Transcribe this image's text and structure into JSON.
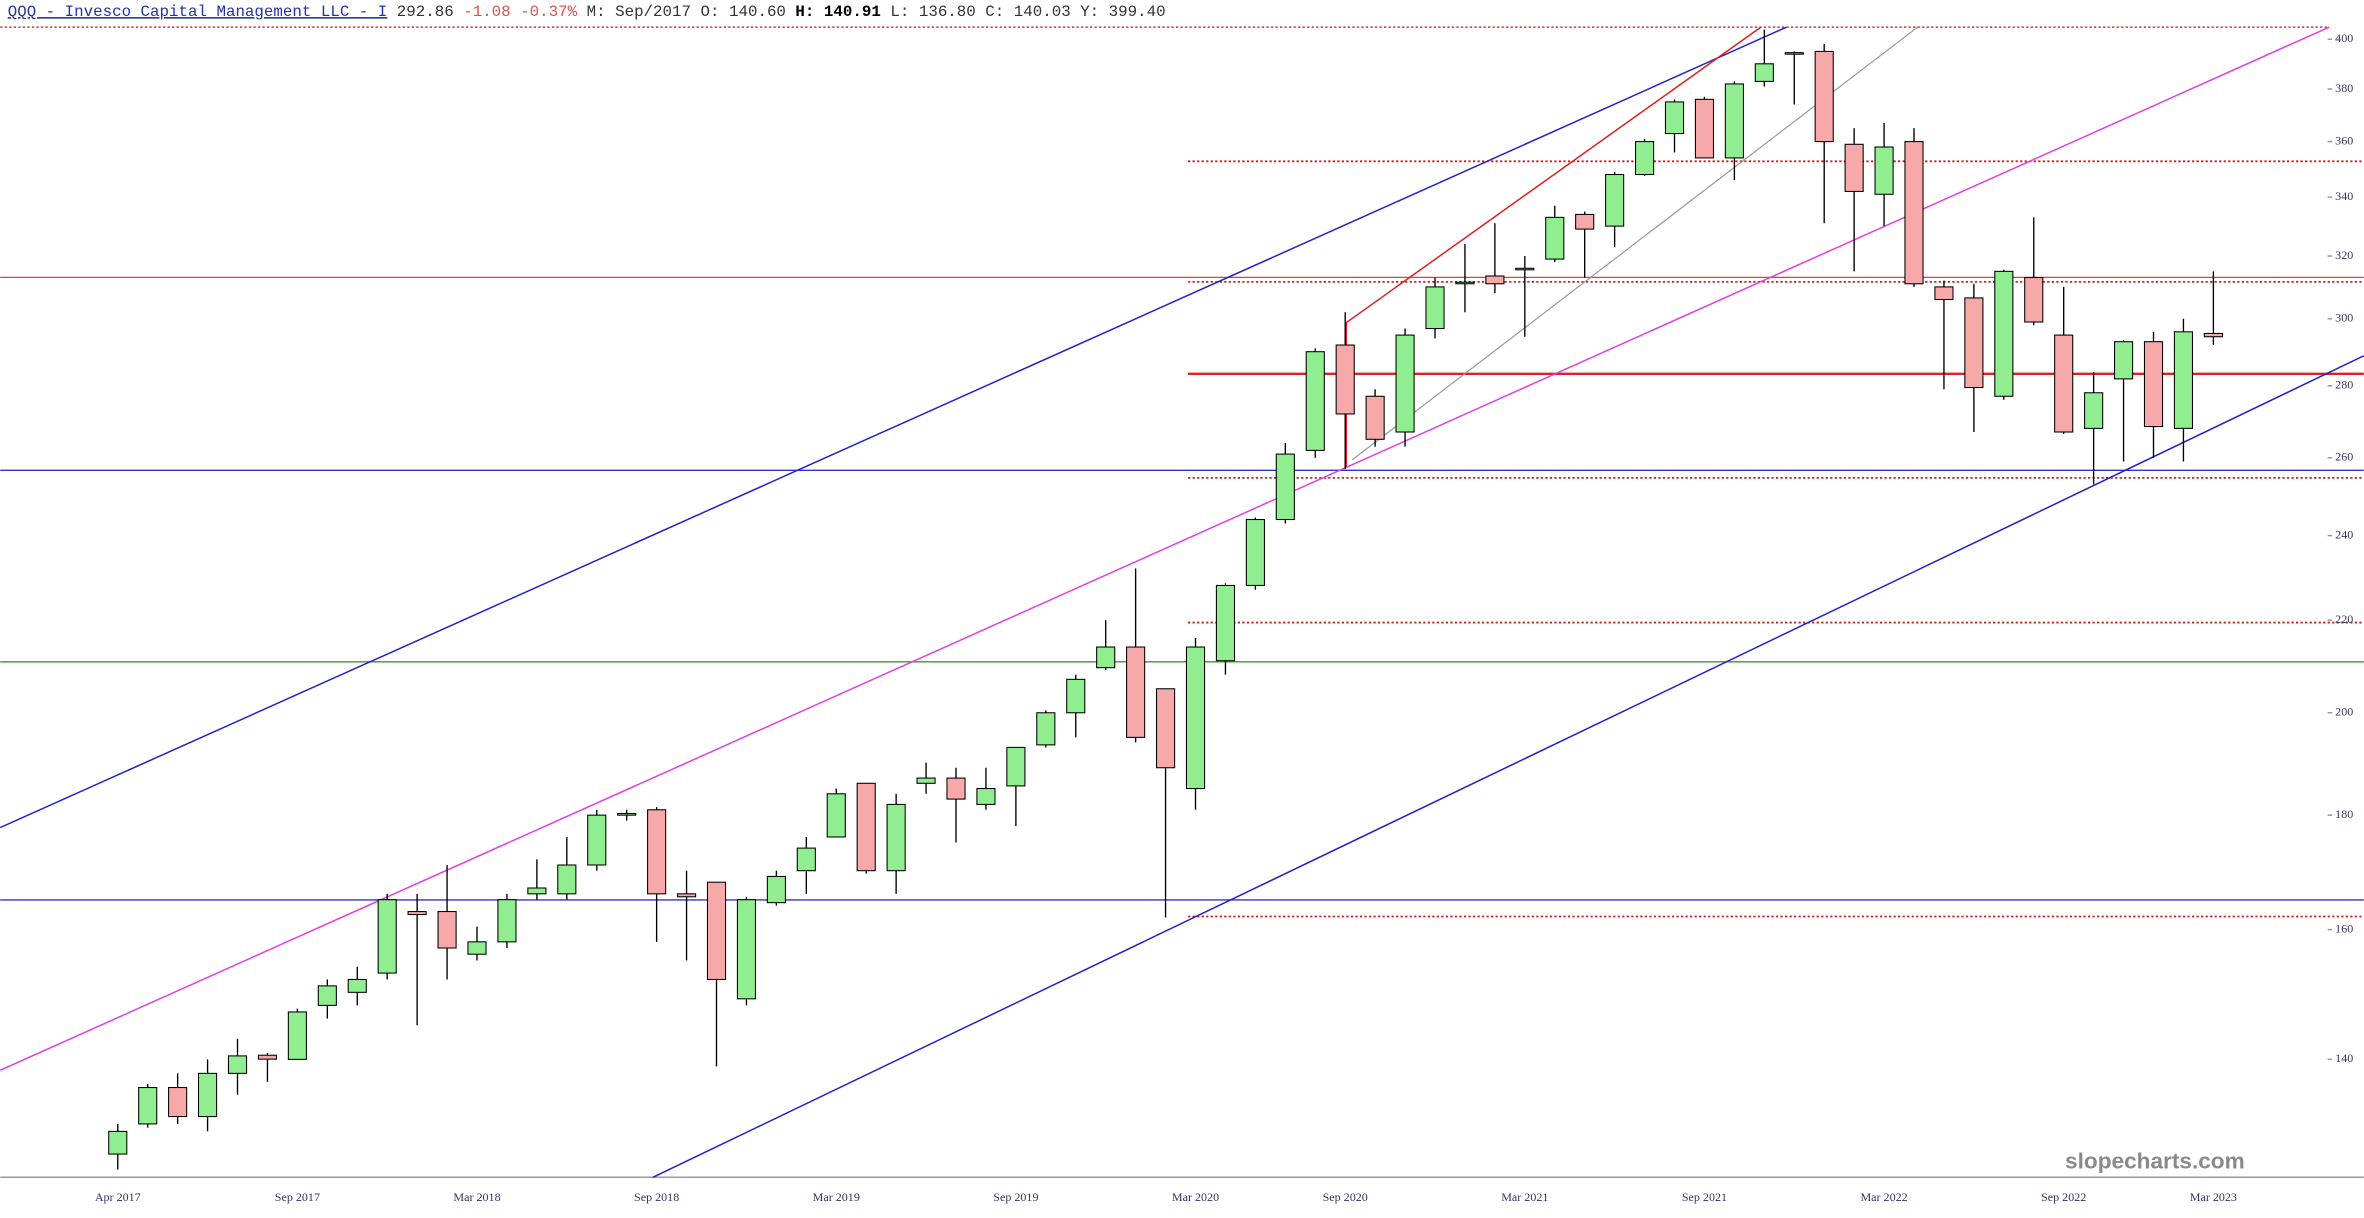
{
  "header": {
    "symbol": "QQQ - Invesco Capital Management LLC - I",
    "last": "292.86",
    "change": "-1.08",
    "change_pct": "-0.37%",
    "period_label": "M:",
    "period": "Sep/2017",
    "open_label": "O:",
    "open": "140.60",
    "high_label": "H:",
    "high": "140.91",
    "low_label": "L:",
    "low": "136.80",
    "close_label": "C:",
    "close": "140.03",
    "y_label": "Y:",
    "y": "399.40"
  },
  "watermark": "slopecharts.com",
  "chart_data": {
    "type": "candlestick",
    "log_scale": true,
    "up_color": "#90ee90",
    "down_color": "#f7a8a8",
    "categories": [
      "Apr 2017",
      null,
      null,
      null,
      null,
      null,
      "Sep 2017",
      null,
      null,
      null,
      null,
      null,
      "Mar 2018",
      null,
      null,
      null,
      null,
      null,
      "Sep 2018",
      null,
      null,
      null,
      null,
      null,
      "Mar 2019",
      null,
      null,
      null,
      null,
      null,
      "Sep 2019",
      null,
      null,
      null,
      null,
      null,
      "Mar 2020",
      null,
      null,
      null,
      null,
      "Sep 2020",
      null,
      null,
      null,
      null,
      null,
      "Mar 2021",
      null,
      null,
      null,
      null,
      null,
      "Sep 2021",
      null,
      null,
      null,
      null,
      null,
      "Mar 2022",
      null,
      null,
      null,
      null,
      null,
      "Sep 2022",
      null,
      null,
      null,
      null,
      "Mar 2023"
    ],
    "open": [
      127,
      131,
      136,
      132,
      138,
      140.6,
      140,
      148,
      150,
      153,
      163,
      163,
      156,
      158,
      166,
      166,
      171,
      180,
      181,
      166,
      168,
      149,
      164.5,
      170,
      176,
      186,
      170,
      186,
      187,
      182,
      185.5,
      193.5,
      200,
      209.5,
      214,
      205,
      185,
      211,
      228,
      244,
      262,
      292,
      277,
      267,
      297,
      311,
      313.5,
      315.5,
      319,
      334,
      330,
      348,
      363,
      376,
      354,
      383,
      394,
      395,
      359,
      341,
      360,
      310,
      306.5,
      277,
      313,
      295,
      268,
      282,
      293,
      268,
      295.5
    ],
    "high": [
      131,
      136.5,
      138,
      140,
      143,
      140.91,
      147.5,
      152,
      154,
      166,
      166,
      171,
      160.5,
      166,
      172,
      176,
      181,
      181,
      181.5,
      170,
      168,
      165.5,
      170,
      176,
      185,
      186,
      184,
      190,
      189,
      189,
      193,
      200.5,
      208,
      220,
      232,
      205,
      216,
      228.5,
      244.5,
      264,
      291,
      302,
      279,
      297,
      313,
      324,
      331,
      320,
      337,
      335,
      349,
      361,
      376,
      377,
      383,
      404,
      395,
      398,
      365,
      367,
      365,
      312,
      311,
      315.5,
      333,
      310,
      284,
      293.5,
      296,
      300,
      315
    ],
    "low": [
      125,
      130.5,
      131,
      130,
      135,
      136.8,
      140,
      146,
      148,
      152,
      145,
      152,
      155,
      157,
      165,
      165,
      170,
      179,
      158,
      155,
      139,
      148,
      164,
      166,
      176,
      169.5,
      166,
      184,
      175,
      181,
      178,
      193,
      195,
      209,
      194,
      162,
      181,
      208,
      227,
      243,
      260,
      257,
      263,
      263,
      294,
      302,
      308,
      294.5,
      318,
      313,
      323,
      347.5,
      356,
      354,
      346,
      381,
      374,
      331,
      315,
      330,
      310,
      279,
      267,
      276,
      298,
      266.5,
      253,
      259,
      260,
      259,
      292
    ],
    "close": [
      130,
      136,
      132,
      138,
      140.5,
      140.03,
      147,
      151,
      152,
      165,
      162.5,
      157,
      158,
      165,
      167,
      171,
      180,
      180.3,
      166,
      165.5,
      152,
      165,
      169,
      174,
      184,
      170,
      182,
      187,
      183,
      185,
      193,
      200,
      207,
      214,
      195,
      189,
      214,
      228,
      244,
      261,
      290,
      272,
      265,
      295,
      310,
      311.5,
      311,
      316,
      333,
      329,
      348,
      360,
      375,
      354,
      382,
      390,
      394.5,
      360,
      342,
      358,
      311,
      306,
      279.5,
      315,
      299,
      267,
      278,
      293,
      268.5,
      296,
      294.5
    ],
    "ylim": [
      124,
      405
    ],
    "yticks": [
      140,
      160,
      180,
      200,
      220,
      240,
      260,
      280,
      300,
      320,
      340,
      360,
      380,
      400
    ]
  }
}
